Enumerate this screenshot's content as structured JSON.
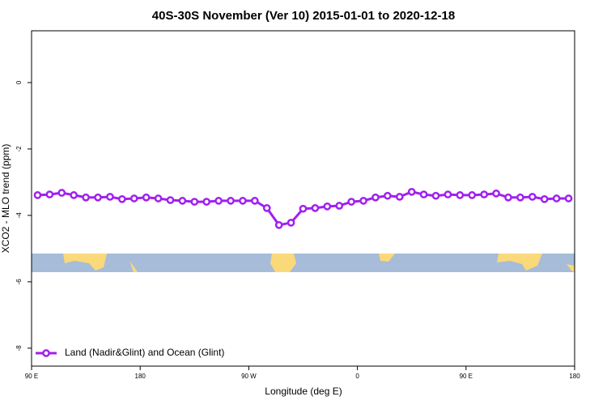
{
  "chart_data": {
    "type": "line",
    "title": "40S-30S November (Ver 10)   2015-01-01 to 2020-12-18",
    "x_label": "Longitude (deg E)",
    "y_label": "XCO2 - MLO trend (ppm)",
    "x": [
      95,
      105,
      115,
      125,
      135,
      145,
      155,
      165,
      175,
      185,
      195,
      205,
      215,
      225,
      235,
      245,
      255,
      265,
      275,
      285,
      295,
      305,
      315,
      325,
      335,
      345,
      355,
      365,
      375,
      385,
      395,
      405,
      415,
      425,
      435,
      445,
      455,
      465,
      475,
      485,
      495,
      505,
      515,
      525,
      535
    ],
    "series": [
      {
        "name": "Land (Nadir&Glint) and Ocean (Glint)",
        "color": "#a020f0",
        "values": [
          -3.39,
          -3.37,
          -3.32,
          -3.39,
          -3.46,
          -3.46,
          -3.44,
          -3.51,
          -3.49,
          -3.46,
          -3.49,
          -3.54,
          -3.56,
          -3.59,
          -3.59,
          -3.56,
          -3.56,
          -3.56,
          -3.56,
          -3.78,
          -4.29,
          -4.22,
          -3.8,
          -3.78,
          -3.73,
          -3.71,
          -3.59,
          -3.56,
          -3.46,
          -3.41,
          -3.44,
          -3.29,
          -3.37,
          -3.41,
          -3.37,
          -3.39,
          -3.39,
          -3.37,
          -3.34,
          -3.46,
          -3.46,
          -3.44,
          -3.51,
          -3.49,
          -3.49
        ]
      }
    ],
    "xlim": [
      90,
      540
    ],
    "xticks": [
      {
        "value": 90,
        "label": "90 E"
      },
      180,
      {
        "value": 270,
        "label": "90 W"
      },
      {
        "value": 360,
        "label": "0"
      },
      {
        "value": 450,
        "label": "90 E"
      },
      {
        "value": 540,
        "label": "180"
      }
    ],
    "ylim": [
      -8.54,
      1.56
    ],
    "yticks": [
      0,
      -2,
      -4,
      -6,
      -8
    ],
    "legend": "bottom-left"
  }
}
